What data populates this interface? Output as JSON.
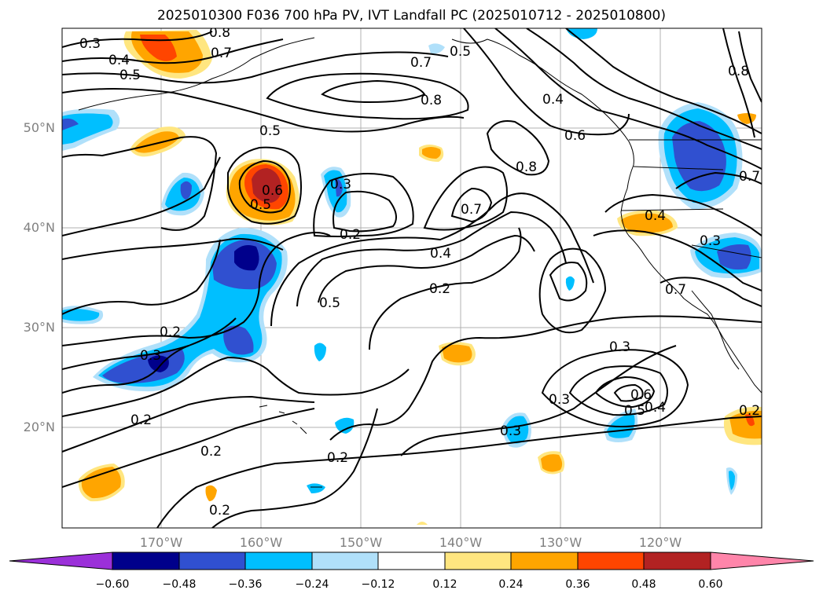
{
  "title": "2025010300 F036 700 hPa PV, IVT Landfall PC (2025010712 - 2025010800)",
  "lat_labels": [
    "50°N",
    "40°N",
    "30°N",
    "20°N"
  ],
  "lon_labels": [
    "170°W",
    "160°W",
    "150°W",
    "140°W",
    "130°W",
    "120°W"
  ],
  "contour_labels": [
    "0.3",
    "0.4",
    "0.5",
    "0.8",
    "0.7",
    "0.5",
    "0.7",
    "0.8",
    "0.4",
    "0.5",
    "0.6",
    "0.8",
    "0.8",
    "0.3",
    "0.6",
    "0.5",
    "0.2",
    "0.7",
    "0.4",
    "0.4",
    "0.2",
    "0.5",
    "0.3",
    "0.7",
    "0.2",
    "0.3",
    "0.3",
    "0.3",
    "0.6",
    "0.5",
    "0.4",
    "0.2",
    "0.2",
    "0.2",
    "0.2",
    "0.3",
    "0.2",
    "0.7"
  ],
  "colorbar": {
    "ticks": [
      "−0.60",
      "−0.48",
      "−0.36",
      "−0.24",
      "−0.12",
      "0.12",
      "0.24",
      "0.36",
      "0.48",
      "0.60"
    ],
    "colors": [
      "#9b30d9",
      "#00008b",
      "#3050d0",
      "#00bfff",
      "#b0e0fa",
      "#ffffff",
      "#ffe680",
      "#ffa500",
      "#ff4500",
      "#b22222",
      "#ff85aa"
    ]
  },
  "fill_colors": {
    "neg1": "#b0e0fa",
    "neg2": "#00bfff",
    "neg3": "#3050d0",
    "neg4": "#00008b",
    "pos1": "#ffe680",
    "pos2": "#ffa500",
    "pos3": "#ff4500",
    "pos4": "#b22222"
  }
}
